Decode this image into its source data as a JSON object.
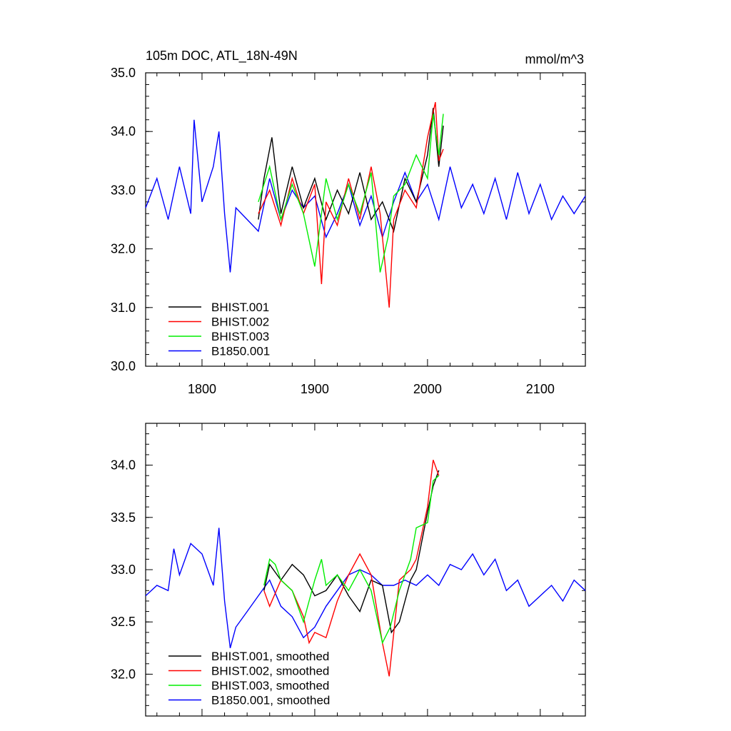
{
  "chart_data": [
    {
      "type": "line",
      "title_left": "105m DOC, ATL_18N-49N",
      "title_right": "mmol/m^3",
      "xlim": [
        1750,
        2140
      ],
      "ylim": [
        30.0,
        35.0
      ],
      "x_ticks": [
        1800,
        1900,
        2000,
        2100
      ],
      "x_tick_labels": [
        "1800",
        "1900",
        "2000",
        "2100"
      ],
      "y_ticks": [
        30.0,
        31.0,
        32.0,
        33.0,
        34.0,
        35.0
      ],
      "y_tick_labels": [
        "30.0",
        "31.0",
        "32.0",
        "33.0",
        "34.0",
        "35.0"
      ],
      "legend_position": "bottom-left",
      "series": [
        {
          "name": "B1850.001",
          "color": "#0000ff",
          "x": [
            1750,
            1760,
            1770,
            1780,
            1790,
            1793,
            1800,
            1810,
            1815,
            1820,
            1825,
            1830,
            1840,
            1850,
            1860,
            1870,
            1880,
            1890,
            1900,
            1910,
            1920,
            1930,
            1940,
            1950,
            1960,
            1970,
            1980,
            1990,
            2000,
            2010,
            2020,
            2030,
            2040,
            2050,
            2060,
            2070,
            2080,
            2090,
            2100,
            2110,
            2120,
            2130,
            2140
          ],
          "y": [
            32.7,
            33.2,
            32.5,
            33.4,
            32.6,
            34.2,
            32.8,
            33.4,
            34.0,
            32.6,
            31.6,
            32.7,
            32.5,
            32.3,
            33.2,
            32.5,
            33.0,
            32.7,
            32.9,
            32.2,
            32.6,
            33.1,
            32.4,
            32.9,
            32.2,
            32.8,
            33.3,
            32.8,
            33.1,
            32.5,
            33.4,
            32.7,
            33.1,
            32.6,
            33.2,
            32.5,
            33.3,
            32.6,
            33.1,
            32.5,
            32.9,
            32.6,
            32.9
          ]
        },
        {
          "name": "BHIST.001",
          "color": "#000000",
          "x": [
            1850,
            1855,
            1862,
            1870,
            1880,
            1890,
            1900,
            1910,
            1920,
            1930,
            1940,
            1950,
            1960,
            1970,
            1980,
            1990,
            2000,
            2005,
            2010,
            2014
          ],
          "y": [
            32.5,
            33.2,
            33.9,
            32.6,
            33.4,
            32.7,
            33.2,
            32.5,
            33.0,
            32.6,
            33.3,
            32.5,
            32.8,
            32.3,
            33.2,
            32.8,
            33.6,
            34.4,
            33.4,
            34.1
          ]
        },
        {
          "name": "BHIST.002",
          "color": "#ff0000",
          "x": [
            1850,
            1860,
            1870,
            1880,
            1890,
            1900,
            1906,
            1910,
            1920,
            1930,
            1940,
            1950,
            1958,
            1962,
            1966,
            1970,
            1980,
            1990,
            2000,
            2007,
            2010,
            2014
          ],
          "y": [
            32.6,
            33.0,
            32.4,
            33.2,
            32.6,
            33.1,
            31.4,
            32.8,
            32.4,
            33.2,
            32.5,
            33.4,
            32.6,
            31.8,
            31.0,
            32.5,
            33.0,
            32.7,
            33.9,
            34.5,
            33.5,
            33.7
          ]
        },
        {
          "name": "BHIST.003",
          "color": "#00ee00",
          "x": [
            1850,
            1860,
            1870,
            1880,
            1890,
            1900,
            1910,
            1920,
            1930,
            1940,
            1950,
            1958,
            1965,
            1970,
            1980,
            1990,
            2000,
            2005,
            2010,
            2014
          ],
          "y": [
            32.8,
            33.4,
            32.5,
            33.1,
            32.6,
            31.7,
            33.2,
            32.5,
            33.1,
            32.6,
            33.3,
            31.6,
            32.2,
            32.9,
            33.1,
            33.6,
            33.2,
            34.3,
            33.6,
            34.3
          ]
        }
      ]
    },
    {
      "type": "line",
      "xlim": [
        1750,
        2140
      ],
      "ylim": [
        31.6,
        34.4
      ],
      "x_ticks": [
        1800,
        1900,
        2000,
        2100
      ],
      "y_ticks": [
        32.0,
        32.5,
        33.0,
        33.5,
        34.0
      ],
      "y_tick_labels": [
        "32.0",
        "32.5",
        "33.0",
        "33.5",
        "34.0"
      ],
      "legend_position": "bottom-left",
      "series": [
        {
          "name": "BHIST.001, smoothed",
          "color": "#000000",
          "x": [
            1855,
            1860,
            1870,
            1880,
            1890,
            1900,
            1910,
            1920,
            1930,
            1940,
            1950,
            1960,
            1968,
            1975,
            1985,
            1990,
            2000,
            2005,
            2010
          ],
          "y": [
            32.8,
            33.05,
            32.9,
            33.05,
            32.95,
            32.75,
            32.8,
            32.95,
            32.75,
            32.6,
            32.9,
            32.85,
            32.4,
            32.5,
            32.9,
            33.0,
            33.55,
            33.8,
            33.95
          ]
        },
        {
          "name": "BHIST.002, smoothed",
          "color": "#ff0000",
          "x": [
            1855,
            1860,
            1870,
            1880,
            1890,
            1895,
            1900,
            1910,
            1920,
            1930,
            1940,
            1950,
            1960,
            1966,
            1975,
            1985,
            1990,
            2000,
            2005,
            2010
          ],
          "y": [
            32.8,
            32.65,
            32.9,
            32.8,
            32.55,
            32.3,
            32.4,
            32.35,
            32.7,
            32.95,
            33.15,
            32.95,
            32.3,
            31.98,
            32.9,
            33.0,
            33.1,
            33.6,
            34.05,
            33.9
          ]
        },
        {
          "name": "BHIST.003, smoothed",
          "color": "#00ee00",
          "x": [
            1855,
            1860,
            1865,
            1870,
            1880,
            1890,
            1900,
            1906,
            1910,
            1920,
            1930,
            1940,
            1950,
            1960,
            1967,
            1975,
            1985,
            1990,
            2000,
            2005,
            2010
          ],
          "y": [
            32.85,
            33.1,
            33.05,
            32.9,
            32.8,
            32.5,
            32.9,
            33.1,
            32.85,
            32.95,
            32.8,
            33.0,
            32.8,
            32.3,
            32.45,
            32.8,
            33.1,
            33.4,
            33.45,
            33.85,
            33.9
          ]
        },
        {
          "name": "B1850.001, smoothed",
          "color": "#0000ff",
          "x": [
            1750,
            1760,
            1770,
            1775,
            1780,
            1790,
            1800,
            1810,
            1815,
            1820,
            1825,
            1830,
            1840,
            1850,
            1860,
            1870,
            1880,
            1890,
            1900,
            1910,
            1920,
            1930,
            1940,
            1950,
            1960,
            1970,
            1980,
            1990,
            2000,
            2010,
            2020,
            2030,
            2040,
            2050,
            2060,
            2070,
            2080,
            2090,
            2100,
            2110,
            2120,
            2130,
            2140
          ],
          "y": [
            32.75,
            32.85,
            32.8,
            33.2,
            32.95,
            33.25,
            33.15,
            32.85,
            33.4,
            32.7,
            32.25,
            32.45,
            32.6,
            32.75,
            32.9,
            32.65,
            32.55,
            32.35,
            32.45,
            32.65,
            32.8,
            32.95,
            33.0,
            32.95,
            32.85,
            32.85,
            32.9,
            32.85,
            32.95,
            32.85,
            33.05,
            33.0,
            33.15,
            32.95,
            33.1,
            32.8,
            32.9,
            32.65,
            32.75,
            32.85,
            32.7,
            32.9,
            32.8
          ]
        }
      ]
    }
  ]
}
